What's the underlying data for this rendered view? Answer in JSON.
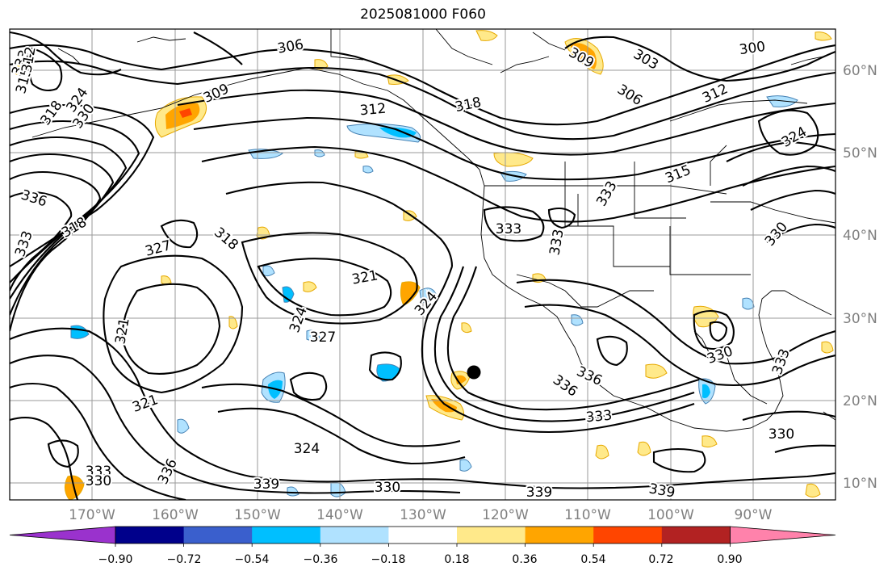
{
  "title": "2025081000 F060",
  "lat_labels": [
    "60°N",
    "50°N",
    "40°N",
    "30°N",
    "20°N",
    "10°N"
  ],
  "lon_labels": [
    "170°W",
    "160°W",
    "150°W",
    "140°W",
    "130°W",
    "120°W",
    "110°W",
    "100°W",
    "90°W"
  ],
  "colorbar": {
    "ticks": [
      "−0.90",
      "−0.72",
      "−0.54",
      "−0.36",
      "−0.18",
      "0.18",
      "0.36",
      "0.54",
      "0.72",
      "0.90"
    ],
    "colors": [
      "#9a32cd",
      "#00008b",
      "#3a5fcd",
      "#00bfff",
      "#b0e2ff",
      "#ffffff",
      "#ffe98a",
      "#ffa500",
      "#ff4500",
      "#b22222",
      "#ff82ab"
    ]
  },
  "contour_labels": [
    {
      "text": "306"
    },
    {
      "text": "312"
    },
    {
      "text": "318"
    },
    {
      "text": "309"
    },
    {
      "text": "303"
    },
    {
      "text": "306"
    },
    {
      "text": "300"
    },
    {
      "text": "312"
    },
    {
      "text": "324"
    },
    {
      "text": "315"
    },
    {
      "text": "333"
    },
    {
      "text": "333"
    },
    {
      "text": "330"
    },
    {
      "text": "336"
    },
    {
      "text": "318"
    },
    {
      "text": "333"
    },
    {
      "text": "327"
    },
    {
      "text": "318"
    },
    {
      "text": "321"
    },
    {
      "text": "324"
    },
    {
      "text": "327"
    },
    {
      "text": "324"
    },
    {
      "text": "321"
    },
    {
      "text": "324"
    },
    {
      "text": "333"
    },
    {
      "text": "339"
    },
    {
      "text": "330"
    },
    {
      "text": "339"
    },
    {
      "text": "339"
    },
    {
      "text": "336"
    },
    {
      "text": "336"
    },
    {
      "text": "333"
    },
    {
      "text": "330"
    },
    {
      "text": "330"
    },
    {
      "text": "333"
    },
    {
      "text": "330"
    },
    {
      "text": "333"
    },
    {
      "text": "336"
    },
    {
      "text": "321"
    },
    {
      "text": "318"
    },
    {
      "text": "324"
    },
    {
      "text": "330"
    },
    {
      "text": "315"
    },
    {
      "text": "312"
    },
    {
      "text": "309"
    },
    {
      "text": "333"
    }
  ]
}
